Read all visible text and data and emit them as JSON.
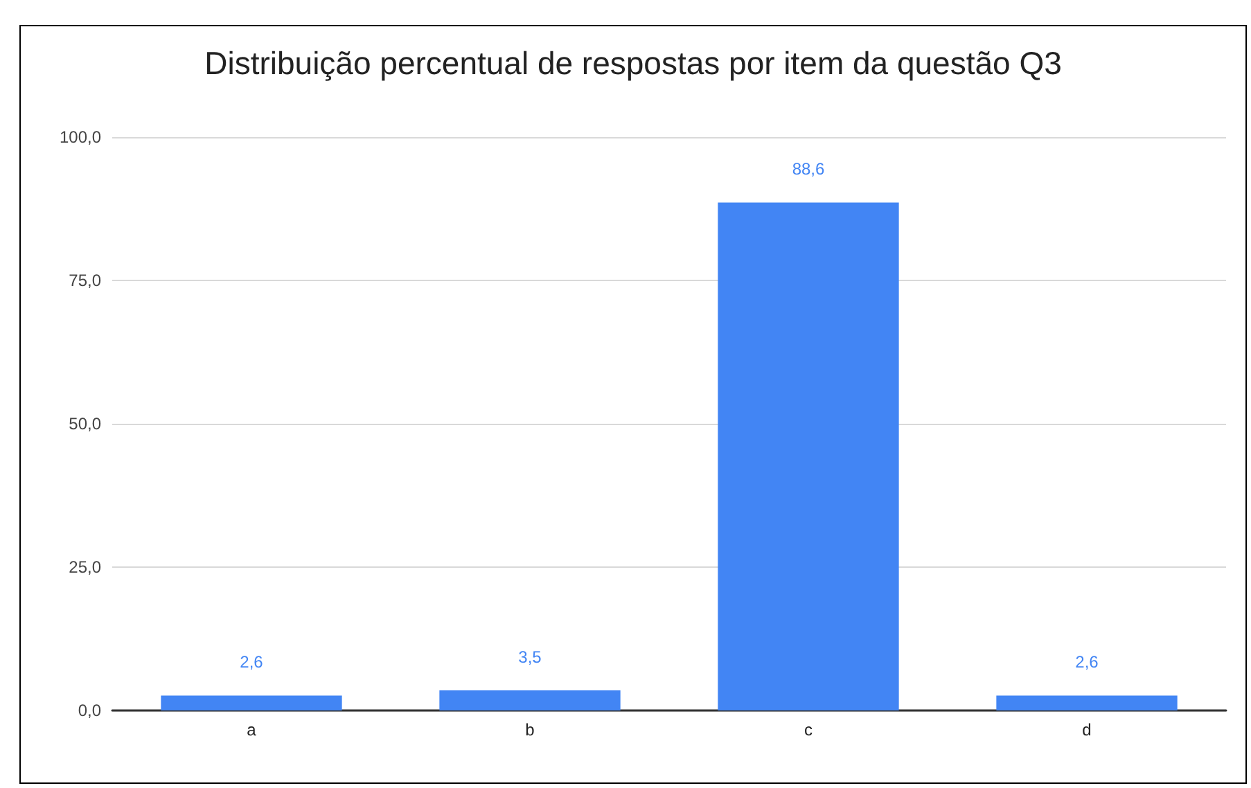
{
  "chart_data": {
    "type": "bar",
    "title": "Distribuição percentual de respostas por item da questão Q3",
    "categories": [
      "a",
      "b",
      "c",
      "d"
    ],
    "values": [
      2.6,
      3.5,
      88.6,
      2.6
    ],
    "value_labels": [
      "2,6",
      "3,5",
      "88,6",
      "2,6"
    ],
    "color": "#4285f4",
    "ylim": [
      0,
      100
    ],
    "yticks": [
      {
        "value": 0,
        "label": "0,0"
      },
      {
        "value": 25,
        "label": "25,0"
      },
      {
        "value": 50,
        "label": "50,0"
      },
      {
        "value": 75,
        "label": "75,0"
      },
      {
        "value": 100,
        "label": "100,0"
      }
    ],
    "grid": "y"
  }
}
